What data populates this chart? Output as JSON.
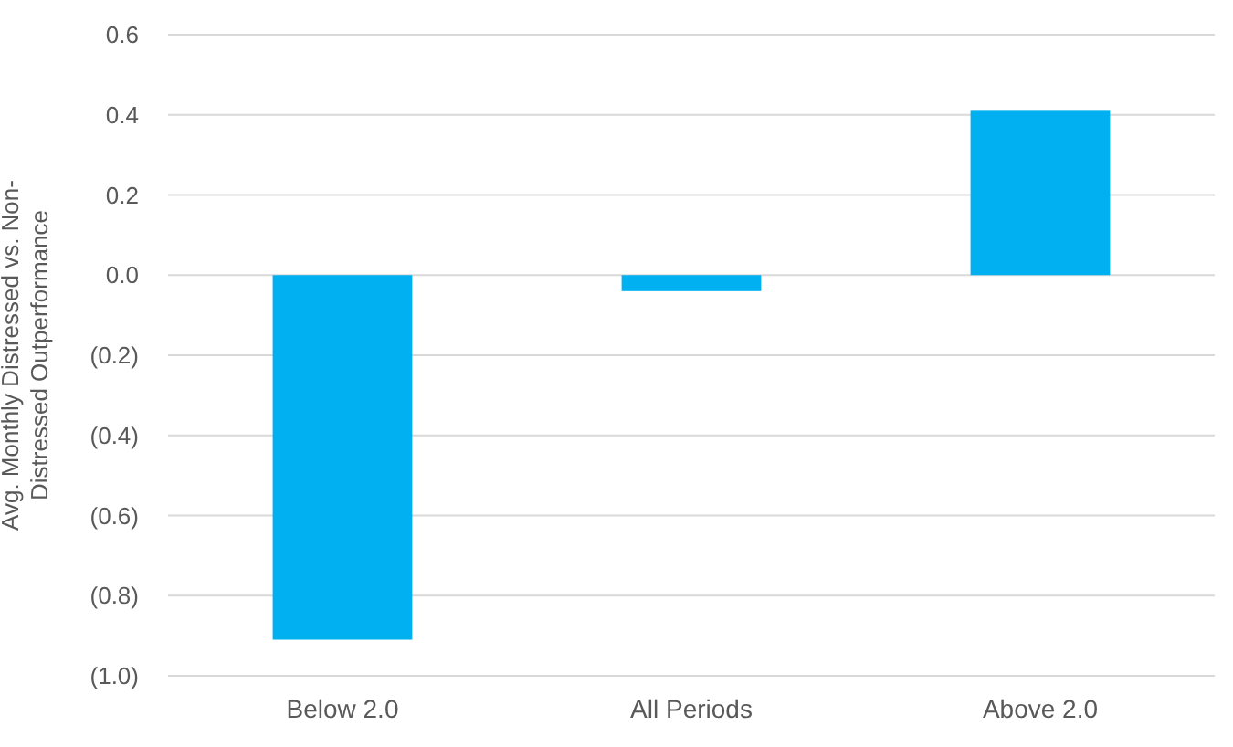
{
  "chart_data": {
    "type": "bar",
    "ylabel": "Avg. Monthly Distressed vs. Non-Distressed Outperformance",
    "categories": [
      "Below 2.0",
      "All Periods",
      "Above 2.0"
    ],
    "values": [
      -0.91,
      -0.04,
      0.41
    ],
    "color": "#00b0f0",
    "ylim": [
      -1.0,
      0.6
    ],
    "yticks": [
      {
        "value": -1.0,
        "label": "(1.0)"
      },
      {
        "value": -0.8,
        "label": "(0.8)"
      },
      {
        "value": -0.6,
        "label": "(0.6)"
      },
      {
        "value": -0.4,
        "label": "(0.4)"
      },
      {
        "value": -0.2,
        "label": "(0.2)"
      },
      {
        "value": 0,
        "label": "0.0"
      },
      {
        "value": 0.2,
        "label": "0.2"
      },
      {
        "value": 0.4,
        "label": "0.4"
      },
      {
        "value": 0.6,
        "label": "0.6"
      }
    ],
    "grid": "y"
  }
}
